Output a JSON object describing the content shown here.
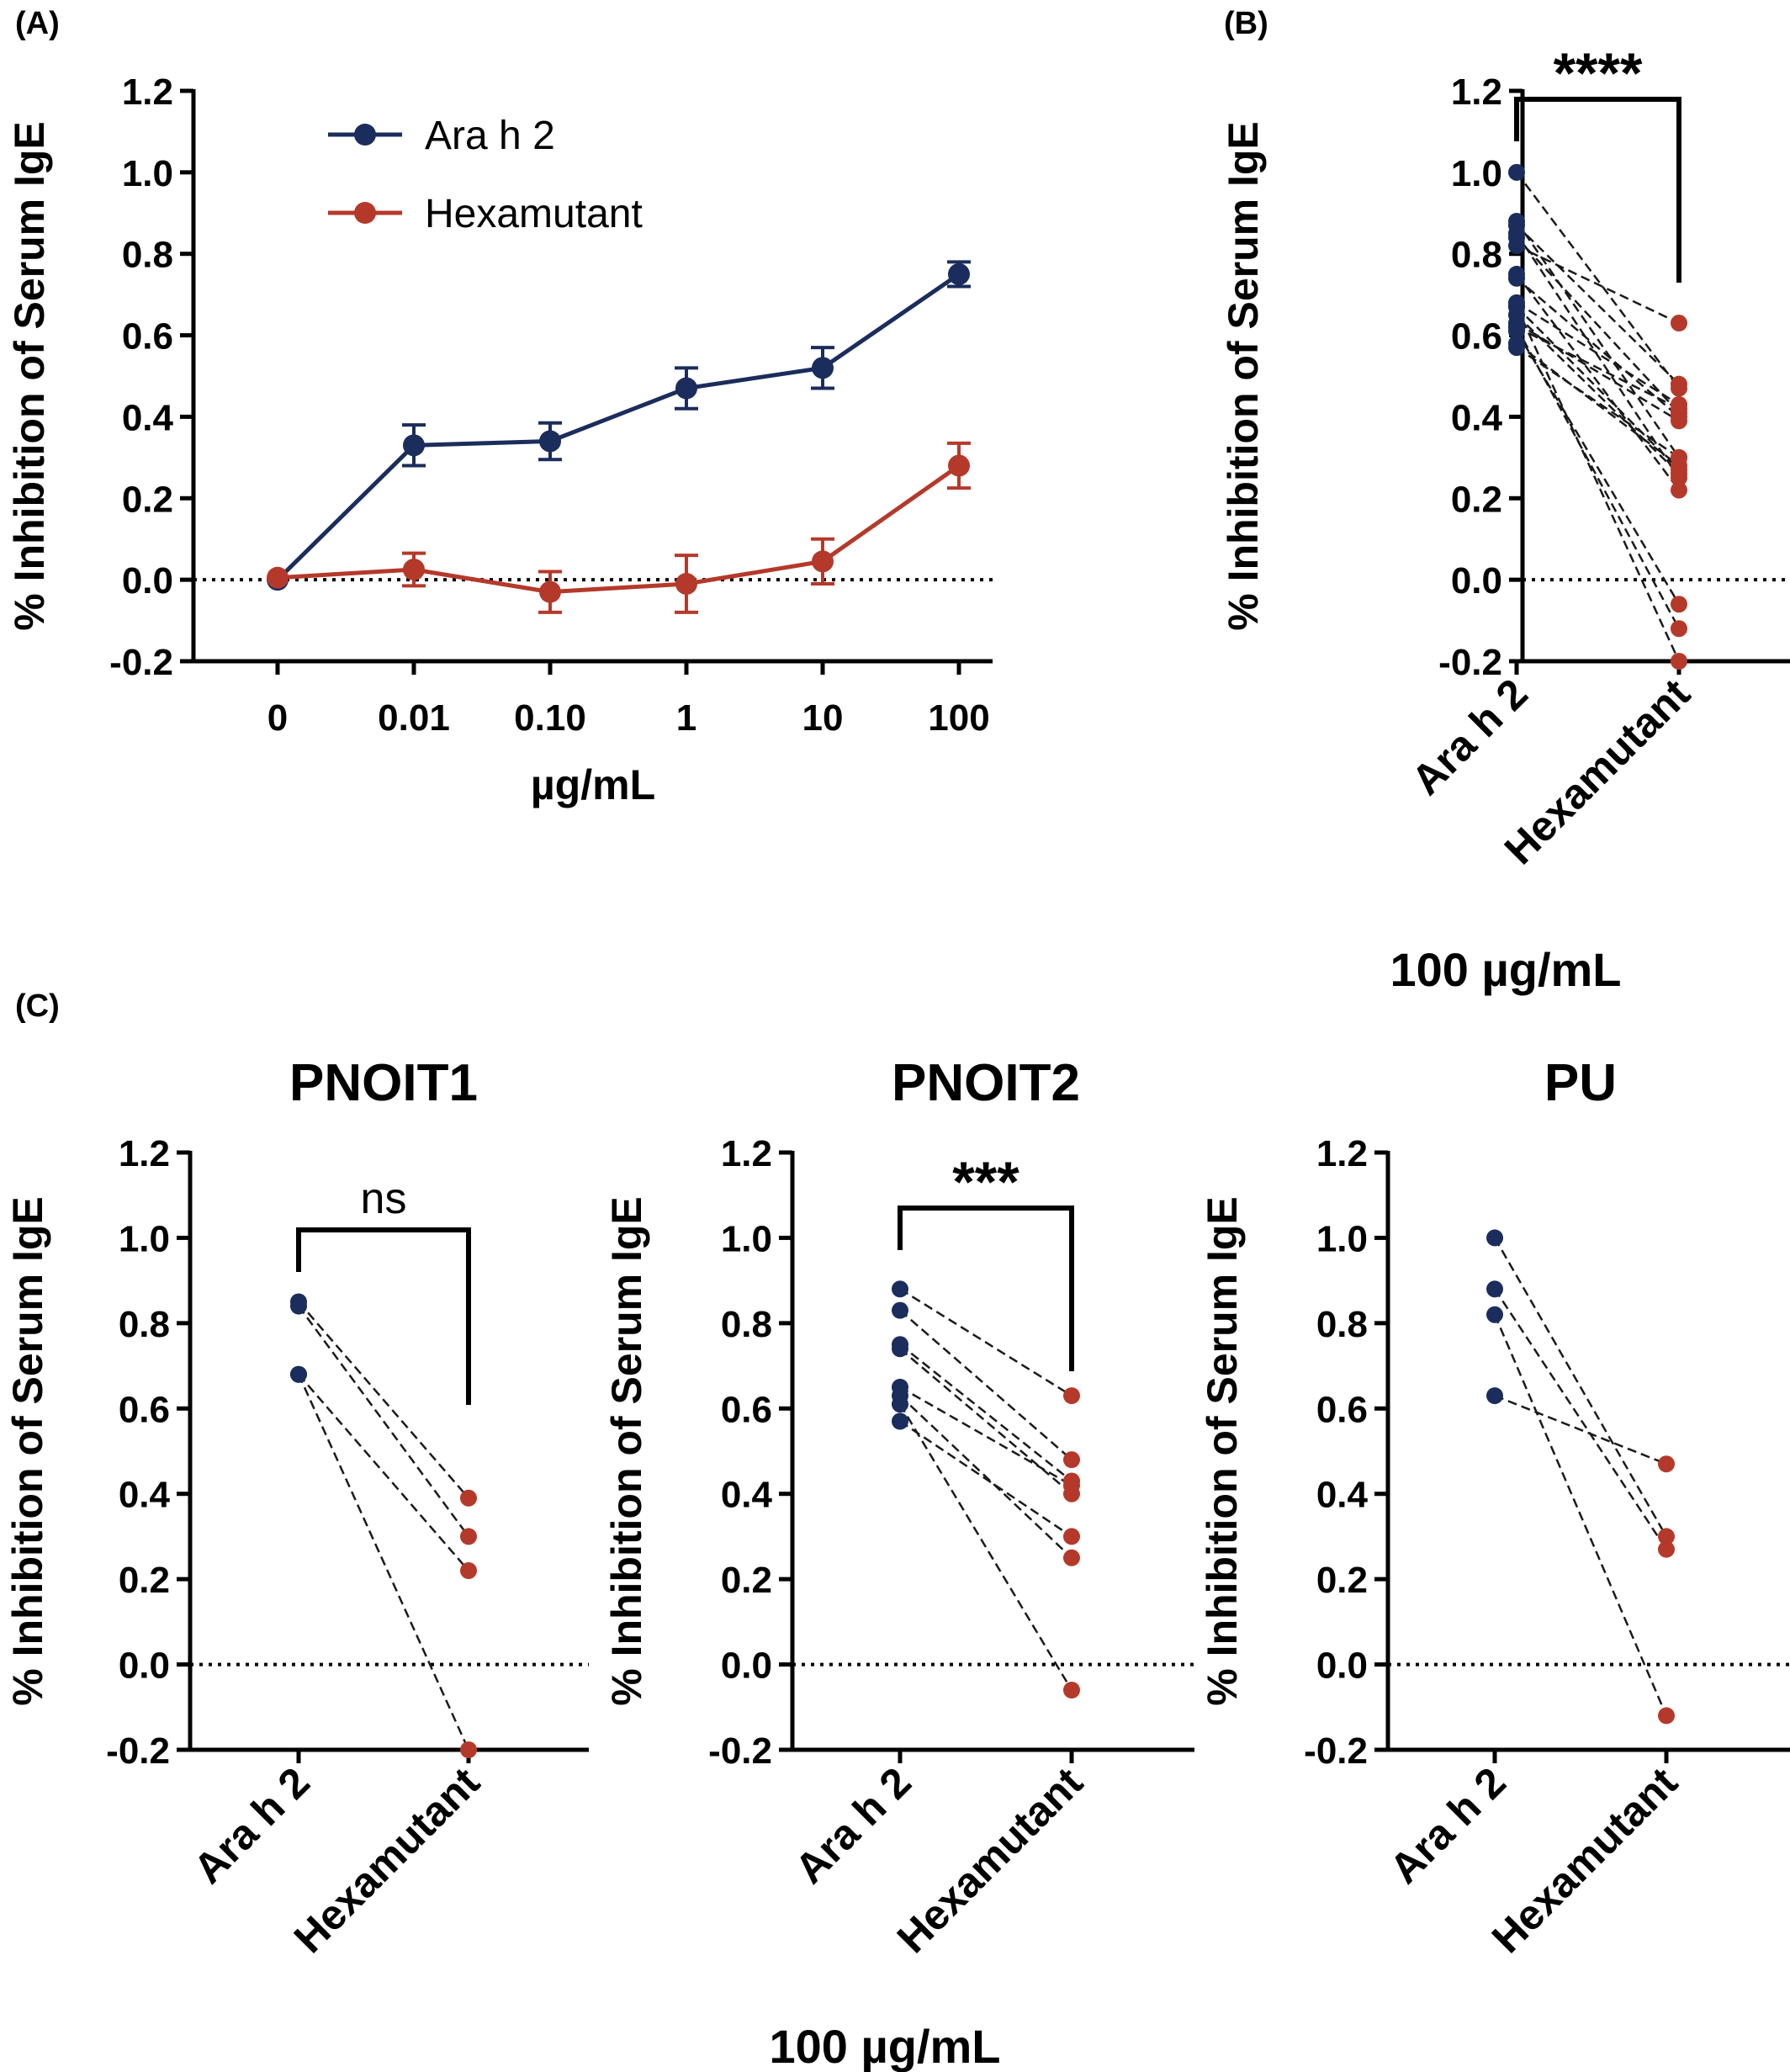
{
  "colors": {
    "ara": "#1b2d5c",
    "hex": "#b5392a"
  },
  "panel_a_letter": "(A)",
  "panel_b_letter": "(B)",
  "panel_c_letter": "(C)",
  "shared_unit_label": "100 µg/mL",
  "chart_data": [
    {
      "type": "line",
      "panel": "A",
      "ylabel": "% Inhibition of Serum IgE",
      "xlabel": "µg/mL",
      "ylim": [
        -0.2,
        1.2
      ],
      "yticks": [
        "-0.2",
        "0.0",
        "0.2",
        "0.4",
        "0.6",
        "0.8",
        "1.0",
        "1.2"
      ],
      "categories": [
        "0",
        "0.01",
        "0.10",
        "1",
        "10",
        "100"
      ],
      "legend_position": "top-left",
      "reference_line": 0,
      "series": [
        {
          "name": "Ara h 2",
          "color": "#1b2d5c",
          "values": [
            0.0,
            0.33,
            0.34,
            0.47,
            0.52,
            0.75
          ],
          "errors": [
            0.0,
            0.05,
            0.045,
            0.05,
            0.05,
            0.03
          ]
        },
        {
          "name": "Hexamutant",
          "color": "#b5392a",
          "values": [
            0.005,
            0.025,
            -0.03,
            -0.01,
            0.045,
            0.28
          ],
          "errors": [
            0.0,
            0.04,
            0.05,
            0.07,
            0.055,
            0.055
          ]
        }
      ]
    },
    {
      "type": "scatter",
      "panel": "B",
      "ylabel": "% Inhibition of Serum IgE",
      "subtitle": "",
      "ylim": [
        -0.2,
        1.2
      ],
      "yticks": [
        "-0.2",
        "0.0",
        "0.2",
        "0.4",
        "0.6",
        "0.8",
        "1.0",
        "1.2"
      ],
      "categories": [
        "Ara h 2",
        "Hexamutant"
      ],
      "significance": "****",
      "reference_line": 0,
      "pairs": [
        [
          1.0,
          0.47
        ],
        [
          0.88,
          0.3
        ],
        [
          0.87,
          0.48
        ],
        [
          0.85,
          0.25
        ],
        [
          0.84,
          0.41
        ],
        [
          0.82,
          0.63
        ],
        [
          0.75,
          0.22
        ],
        [
          0.74,
          0.4
        ],
        [
          0.68,
          0.43
        ],
        [
          0.67,
          0.27
        ],
        [
          0.65,
          0.26
        ],
        [
          0.63,
          0.39
        ],
        [
          0.62,
          0.42
        ],
        [
          0.61,
          -0.06
        ],
        [
          0.58,
          0.28
        ],
        [
          0.57,
          0.3
        ],
        [
          0.62,
          -0.12
        ],
        [
          0.67,
          -0.2
        ]
      ]
    },
    {
      "type": "scatter",
      "panel": "C1",
      "subtitle": "PNOIT1",
      "ylabel": "% Inhibition of Serum IgE",
      "ylim": [
        -0.2,
        1.2
      ],
      "yticks": [
        "-0.2",
        "0.0",
        "0.2",
        "0.4",
        "0.6",
        "0.8",
        "1.0",
        "1.2"
      ],
      "categories": [
        "Ara h 2",
        "Hexamutant"
      ],
      "significance": "ns",
      "reference_line": 0,
      "pairs": [
        [
          0.85,
          0.39
        ],
        [
          0.84,
          0.3
        ],
        [
          0.68,
          0.22
        ],
        [
          0.68,
          -0.2
        ]
      ]
    },
    {
      "type": "scatter",
      "panel": "C2",
      "subtitle": "PNOIT2",
      "ylabel": "% Inhibition of Serum IgE",
      "ylim": [
        -0.2,
        1.2
      ],
      "yticks": [
        "-0.2",
        "0.0",
        "0.2",
        "0.4",
        "0.6",
        "0.8",
        "1.0",
        "1.2"
      ],
      "categories": [
        "Ara h 2",
        "Hexamutant"
      ],
      "significance": "***",
      "reference_line": 0,
      "pairs": [
        [
          0.88,
          0.63
        ],
        [
          0.83,
          0.48
        ],
        [
          0.75,
          0.43
        ],
        [
          0.74,
          0.4
        ],
        [
          0.65,
          0.42
        ],
        [
          0.63,
          0.25
        ],
        [
          0.61,
          -0.06
        ],
        [
          0.57,
          0.3
        ]
      ]
    },
    {
      "type": "scatter",
      "panel": "C3",
      "subtitle": "PU",
      "ylabel": "% Inhibition of Serum IgE",
      "ylim": [
        -0.2,
        1.2
      ],
      "yticks": [
        "-0.2",
        "0.0",
        "0.2",
        "0.4",
        "0.6",
        "0.8",
        "1.0",
        "1.2"
      ],
      "categories": [
        "Ara h 2",
        "Hexamutant"
      ],
      "significance": "",
      "reference_line": 0,
      "pairs": [
        [
          1.0,
          0.3
        ],
        [
          0.88,
          0.27
        ],
        [
          0.82,
          -0.12
        ],
        [
          0.63,
          0.47
        ]
      ]
    }
  ]
}
